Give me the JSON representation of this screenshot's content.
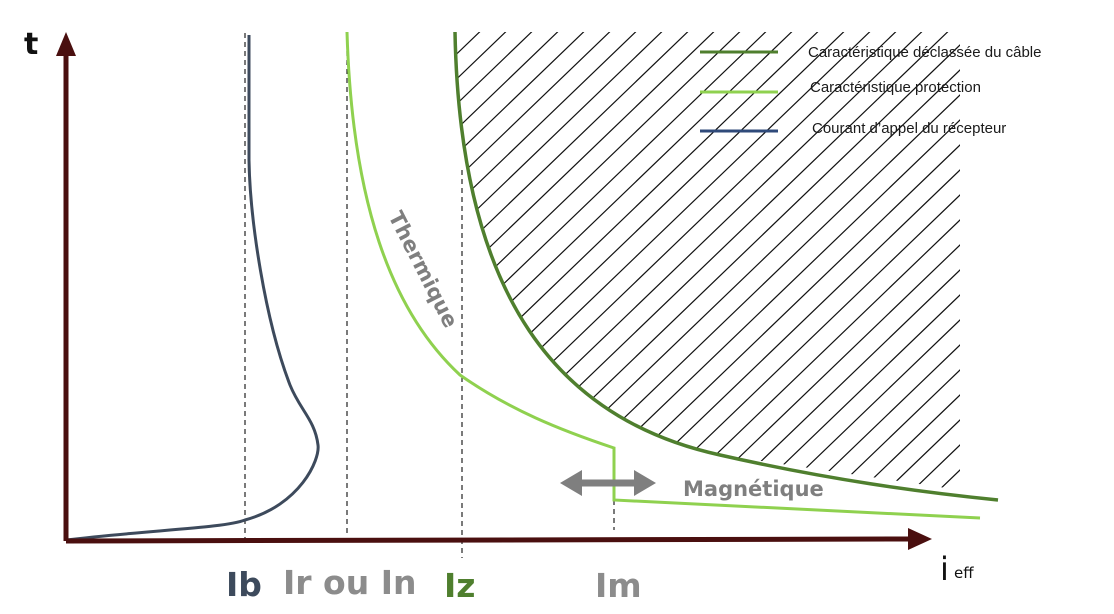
{
  "axes": {
    "y_label": "t",
    "x_label_main": "i",
    "x_label_sub": "eff"
  },
  "legend": [
    {
      "label": "Caractéristique déclassée du câble",
      "color": "#4f7f2e"
    },
    {
      "label": "Caractéristique protection",
      "color": "#8fd14f"
    },
    {
      "label": "Courant d’appel du récepteur",
      "color": "#2f4a7a"
    }
  ],
  "markers": {
    "ib": {
      "label": "Ib",
      "color": "#3d4a5c"
    },
    "ir": {
      "label": "Ir ou In",
      "color": "#8c8c8c"
    },
    "iz": {
      "label": "Iz",
      "color": "#4f7f2e"
    },
    "im": {
      "label": "Im",
      "color": "#8c8c8c"
    }
  },
  "annotations": {
    "thermique": "Thermique",
    "magnetique": "Magnétique"
  },
  "colors": {
    "axis": "#4a0f0f",
    "cable": "#4f7f2e",
    "protection": "#8fd14f",
    "inrush": "#3d4a5c",
    "arrow": "#7f7f7f"
  }
}
